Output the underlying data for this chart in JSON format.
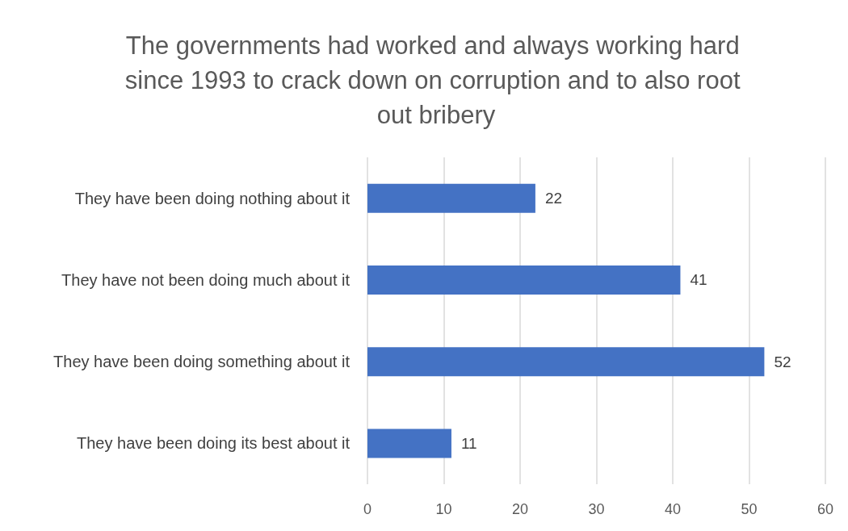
{
  "chart_data": {
    "type": "bar",
    "orientation": "horizontal",
    "title": "The governments had worked and always working hard since 1993 to crack down on corruption and to also root out bribery",
    "categories": [
      "They have been doing nothing about it",
      "They have not been doing much about it",
      "They have been doing something about it",
      "They have been doing its best about it"
    ],
    "values": [
      22,
      41,
      52,
      11
    ],
    "color": "#4472c4",
    "xlim": [
      0,
      60
    ],
    "xticks": [
      0,
      10,
      20,
      30,
      40,
      50,
      60
    ],
    "grid": "x",
    "data_labels": true
  }
}
